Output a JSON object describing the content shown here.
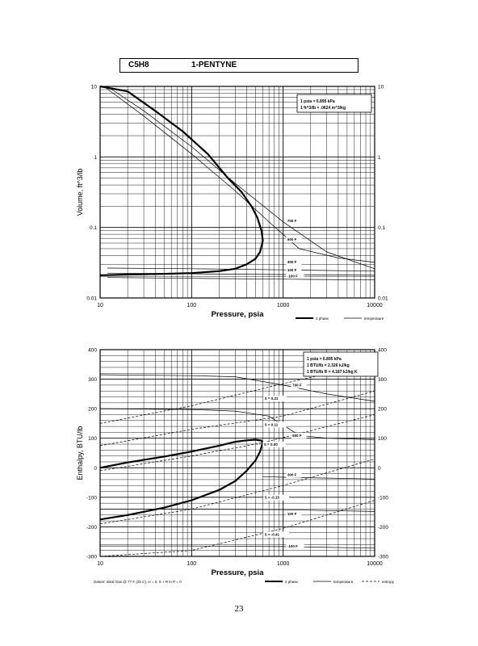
{
  "header": {
    "formula": "C5H8",
    "name": "1-PENTYNE"
  },
  "page_number": "23",
  "chart_data": [
    {
      "type": "line",
      "xlabel": "Pressure,  psia",
      "ylabel": "Volume, ft^3/lb",
      "xscale": "log",
      "yscale": "log",
      "xlim": [
        10,
        10000
      ],
      "ylim": [
        0.01,
        10
      ],
      "x_ticks": [
        "10",
        "100",
        "1000",
        "10000"
      ],
      "y_ticks": [
        "0.01",
        "0.1",
        "1",
        "10"
      ],
      "grid": true,
      "notes": [
        "1 psia  =  6.895 kPa",
        "1 ft^3/lb  =  .0624 m^3/kg"
      ],
      "legend": {
        "position": "bottom-right",
        "items": [
          "2 phase",
          "temperature"
        ]
      },
      "series": [
        {
          "name": "2 phase",
          "x": [
            10,
            20,
            50,
            100,
            200,
            300,
            400,
            500,
            560,
            600,
            580,
            520,
            450,
            350,
            250,
            150,
            80,
            40,
            20,
            10
          ],
          "y": [
            0.021,
            0.0215,
            0.022,
            0.0225,
            0.024,
            0.026,
            0.03,
            0.036,
            0.045,
            0.065,
            0.09,
            0.14,
            0.2,
            0.32,
            0.5,
            1.1,
            2.3,
            4.5,
            8.5,
            10
          ]
        },
        {
          "name": "700 F",
          "x": [
            12,
            30,
            100,
            300,
            1000,
            3000,
            10000
          ],
          "y": [
            10,
            4.5,
            1.4,
            0.42,
            0.12,
            0.045,
            0.026
          ]
        },
        {
          "name": "500 F",
          "x": [
            11,
            30,
            100,
            300,
            700,
            1500,
            4000,
            10000
          ],
          "y": [
            10,
            3.8,
            1.1,
            0.33,
            0.12,
            0.05,
            0.037,
            0.032
          ]
        },
        {
          "name": "300 F",
          "x": [
            12,
            100,
            1000,
            10000
          ],
          "y": [
            0.0265,
            0.026,
            0.025,
            0.024
          ]
        },
        {
          "name": "100 F",
          "x": [
            12,
            100,
            1000,
            10000
          ],
          "y": [
            0.0225,
            0.022,
            0.0215,
            0.021
          ]
        },
        {
          "name": "-100 F",
          "x": [
            12,
            100,
            1000,
            10000
          ],
          "y": [
            0.0195,
            0.019,
            0.0185,
            0.018
          ]
        }
      ],
      "annotations": [
        "700 F",
        "500 F",
        "300 F",
        "100 F",
        "-100 F"
      ]
    },
    {
      "type": "line",
      "xlabel": "Pressure,  psia",
      "ylabel": "Enthalpy, BTU/lb",
      "xscale": "log",
      "xlim": [
        10,
        10000
      ],
      "ylim": [
        -300,
        400
      ],
      "x_ticks": [
        "10",
        "100",
        "1000",
        "10000"
      ],
      "y_ticks": [
        "-300",
        "-200",
        "-100",
        "0",
        "100",
        "200",
        "300",
        "400"
      ],
      "grid": true,
      "notes": [
        "1 psia  =  6.895 kPa",
        "1 BTU/lb  =  2.326 kJ/kg",
        "1 BTU/lb R  =  4.187 kJ/kg K"
      ],
      "datum": "Datum: Ideal Gas @ 77 F (25 C),  H = 0,  S + R ln P = 0",
      "legend": {
        "position": "bottom-right",
        "items": [
          "2 phase",
          "temperature",
          "entropy"
        ]
      },
      "series": [
        {
          "name": "2 phase",
          "x": [
            10,
            20,
            50,
            100,
            200,
            300,
            400,
            500,
            560,
            600,
            580,
            500,
            400,
            300,
            200,
            100,
            50,
            20,
            10
          ],
          "y": [
            -175,
            -160,
            -135,
            -110,
            -75,
            -45,
            -10,
            25,
            55,
            85,
            92,
            95,
            93,
            88,
            75,
            55,
            38,
            18,
            0
          ]
        },
        {
          "name": "700 F",
          "x": [
            10,
            100,
            300,
            1000,
            3000,
            10000
          ],
          "y": [
            315,
            312,
            308,
            280,
            250,
            225
          ]
        },
        {
          "name": "500 F",
          "x": [
            10,
            100,
            300,
            700,
            1500,
            3000,
            10000
          ],
          "y": [
            200,
            197,
            192,
            175,
            110,
            100,
            95
          ]
        },
        {
          "name": "300 F",
          "x": [
            600,
            1000,
            10000
          ],
          "y": [
            -30,
            -32,
            -38
          ]
        },
        {
          "name": "100 F",
          "x": [
            10,
            100,
            1000,
            10000
          ],
          "y": [
            -140,
            -140,
            -142,
            -148
          ]
        },
        {
          "name": "-100 F",
          "x": [
            10,
            100,
            1000,
            10000
          ],
          "y": [
            -265,
            -265,
            -267,
            -272
          ]
        },
        {
          "name": "S = 0.21",
          "x": [
            10,
            100,
            1000,
            10000
          ],
          "y": [
            150,
            210,
            285,
            355
          ]
        },
        {
          "name": "S = 0.11",
          "x": [
            10,
            100,
            1000,
            10000
          ],
          "y": [
            75,
            130,
            175,
            260
          ]
        },
        {
          "name": "S = 0.00",
          "x": [
            10,
            100,
            600,
            10000
          ],
          "y": [
            -10,
            40,
            85,
            180
          ]
        },
        {
          "name": "S = -0.15",
          "x": [
            10,
            100,
            1000,
            10000
          ],
          "y": [
            -190,
            -140,
            -60,
            30
          ]
        },
        {
          "name": "S = -0.41",
          "x": [
            10,
            100,
            1000,
            10000
          ],
          "y": [
            -300,
            -280,
            -205,
            -110
          ]
        }
      ],
      "annotations": [
        "S = 0.21",
        "S = 0.11",
        "S = 0.00",
        "S = -0.15",
        "S = -0.41",
        "700 F",
        "500 F",
        "300 F",
        "100 F",
        "-100 F"
      ]
    }
  ]
}
